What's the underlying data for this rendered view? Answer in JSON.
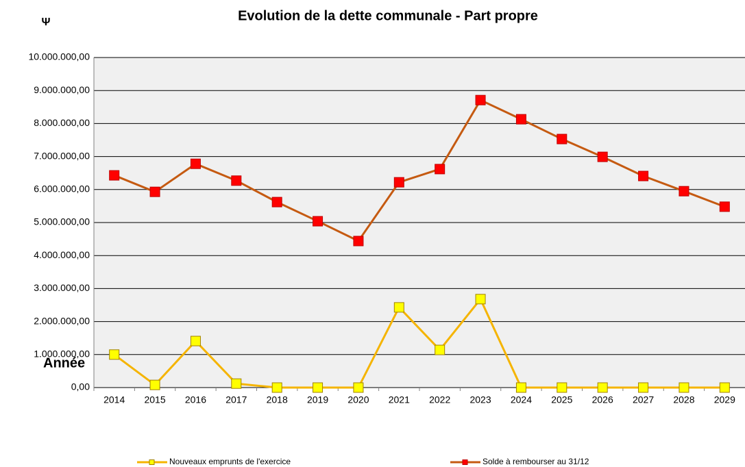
{
  "chart_data": {
    "type": "line",
    "title": "Evolution de la dette communale  - Part propre",
    "y_unit": "Ψ",
    "x_label": "Année",
    "categories": [
      "2014",
      "2015",
      "2016",
      "2017",
      "2018",
      "2019",
      "2020",
      "2021",
      "2022",
      "2023",
      "2024",
      "2025",
      "2026",
      "2027",
      "2028",
      "2029"
    ],
    "series": [
      {
        "name": "Nouveaux emprunts de l'exercice",
        "color": "#f5b400",
        "marker_color": "#ffff00",
        "values": [
          1000000,
          80000,
          1410000,
          120000,
          0,
          0,
          0,
          2430000,
          1140000,
          2680000,
          0,
          0,
          0,
          0,
          0,
          0
        ]
      },
      {
        "name": "Solde à rembourser au 31/12",
        "color": "#c55a11",
        "marker_color": "#ff0000",
        "values": [
          6430000,
          5930000,
          6780000,
          6270000,
          5620000,
          5040000,
          4440000,
          6220000,
          6620000,
          8710000,
          8130000,
          7530000,
          6990000,
          6410000,
          5950000,
          5480000
        ]
      }
    ],
    "ylim": [
      0,
      10000000
    ],
    "yticks": [
      {
        "value": 0,
        "label": "0,00"
      },
      {
        "value": 1000000,
        "label": "1.000.000,00"
      },
      {
        "value": 2000000,
        "label": "2.000.000,00"
      },
      {
        "value": 3000000,
        "label": "3.000.000,00"
      },
      {
        "value": 4000000,
        "label": "4.000.000,00"
      },
      {
        "value": 5000000,
        "label": "5.000.000,00"
      },
      {
        "value": 6000000,
        "label": "6.000.000,00"
      },
      {
        "value": 7000000,
        "label": "7.000.000,00"
      },
      {
        "value": 8000000,
        "label": "8.000.000,00"
      },
      {
        "value": 9000000,
        "label": "9.000.000,00"
      },
      {
        "value": 10000000,
        "label": "10.000.000,00"
      }
    ],
    "grid": true,
    "legend": "bottom"
  }
}
